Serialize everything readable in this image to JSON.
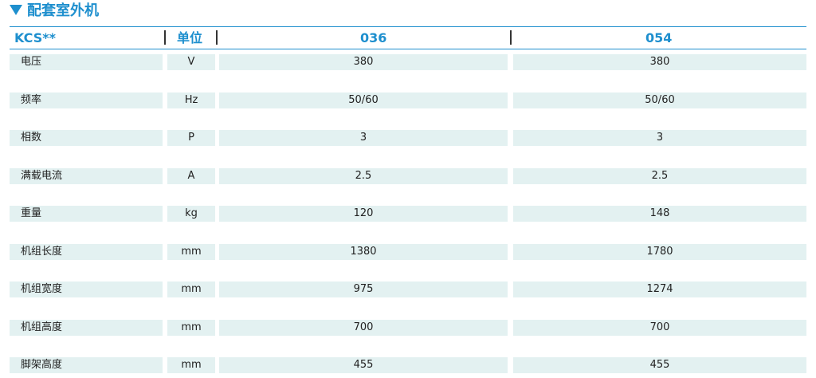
{
  "section": {
    "title": "配套室外机"
  },
  "header": {
    "model": "KCS**",
    "unit": "单位",
    "col1": "036",
    "col2": "054"
  },
  "rows": [
    {
      "name": "电压",
      "unit": "V",
      "v1": "380",
      "v2": "380"
    },
    {
      "name": "频率",
      "unit": "Hz",
      "v1": "50/60",
      "v2": "50/60"
    },
    {
      "name": "相数",
      "unit": "P",
      "v1": "3",
      "v2": "3"
    },
    {
      "name": "满载电流",
      "unit": "A",
      "v1": "2.5",
      "v2": "2.5"
    },
    {
      "name": "重量",
      "unit": "kg",
      "v1": "120",
      "v2": "148"
    },
    {
      "name": "机组长度",
      "unit": "mm",
      "v1": "1380",
      "v2": "1780"
    },
    {
      "name": "机组宽度",
      "unit": "mm",
      "v1": "975",
      "v2": "1274"
    },
    {
      "name": "机组高度",
      "unit": "mm",
      "v1": "700",
      "v2": "700"
    },
    {
      "name": "脚架高度",
      "unit": "mm",
      "v1": "455",
      "v2": "455"
    }
  ]
}
